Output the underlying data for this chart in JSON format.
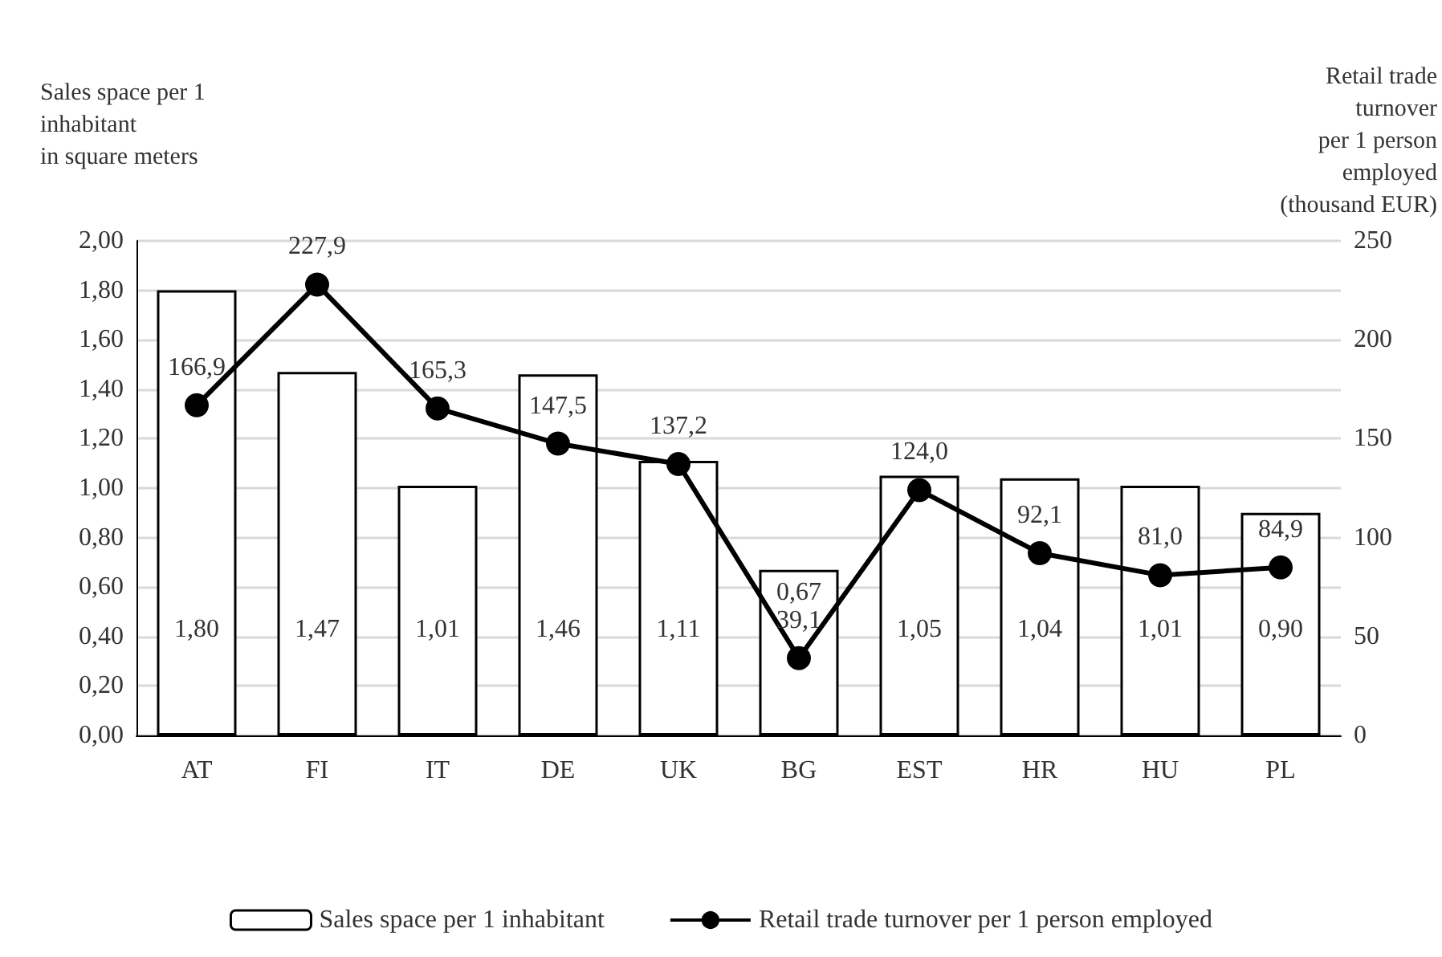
{
  "chart_data": {
    "type": "bar",
    "ylabel": "Sales space per 1\ninhabitant\nin square meters",
    "y2label": "Retail trade\nturnover\nper 1 person\nemployed\n(thousand EUR)",
    "categories": [
      "AT",
      "FI",
      "IT",
      "DE",
      "UK",
      "BG",
      "EST",
      "HR",
      "HU",
      "PL"
    ],
    "series": [
      {
        "name": "Sales space per 1 inhabitant",
        "color": "#ffffff",
        "values": [
          1.8,
          1.47,
          1.01,
          1.46,
          1.11,
          0.67,
          1.05,
          1.04,
          1.01,
          0.9
        ],
        "value_labels": [
          "1,80",
          "1,47",
          "1,01",
          "1,46",
          "1,11",
          "0,67",
          "1,05",
          "1,04",
          "1,01",
          "0,90"
        ]
      },
      {
        "name": "Retail trade turnover per 1 person employed",
        "type": "line",
        "axis": "y2",
        "color": "#000000",
        "marker": "circle",
        "values": [
          166.9,
          227.9,
          165.3,
          147.5,
          137.2,
          39.1,
          124.0,
          92.1,
          81.0,
          84.9
        ],
        "value_labels": [
          "166,9",
          "227,9",
          "165,3",
          "147,5",
          "137,2",
          "39,1",
          "124,0",
          "92,1",
          "81,0",
          "84,9"
        ]
      }
    ],
    "ylim": [
      0,
      2
    ],
    "yticks": [
      {
        "value": 0,
        "label": "0,00"
      },
      {
        "value": 0.2,
        "label": "0,20"
      },
      {
        "value": 0.4,
        "label": "0,40"
      },
      {
        "value": 0.6,
        "label": "0,60"
      },
      {
        "value": 0.8,
        "label": "0,80"
      },
      {
        "value": 1,
        "label": "1,00"
      },
      {
        "value": 1.2,
        "label": "1,20"
      },
      {
        "value": 1.4,
        "label": "1,40"
      },
      {
        "value": 1.6,
        "label": "1,60"
      },
      {
        "value": 1.8,
        "label": "1,80"
      },
      {
        "value": 2,
        "label": "2,00"
      }
    ],
    "y2lim": [
      0,
      250
    ],
    "y2ticks": [
      0,
      50,
      100,
      150,
      200,
      250
    ],
    "grid": "y",
    "legend": "bottom"
  }
}
